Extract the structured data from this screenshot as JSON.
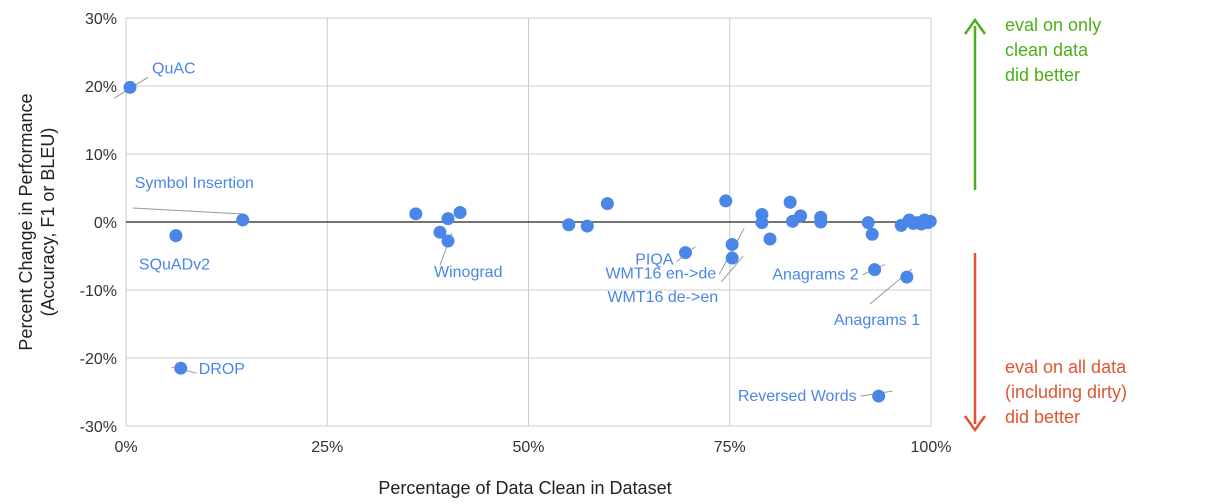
{
  "chart_data": {
    "type": "scatter",
    "title": "",
    "xlabel": "Percentage of Data Clean in Dataset",
    "ylabel": [
      "Percent Change in Performance",
      "(Accuracy,  F1 or BLEU)"
    ],
    "xlim": [
      0,
      100
    ],
    "ylim": [
      -30,
      30
    ],
    "xticks": [
      0,
      25,
      50,
      75,
      100
    ],
    "xtick_labels": [
      "0%",
      "25%",
      "50%",
      "75%",
      "100%"
    ],
    "yticks": [
      30,
      20,
      10,
      0,
      -10,
      -20,
      -30
    ],
    "ytick_labels": [
      "30%",
      "20%",
      "10%",
      "0%",
      "-10%",
      "-20%",
      "-30%"
    ],
    "grid": true,
    "point_color": "#4a86e8",
    "points": [
      {
        "x": 0.5,
        "y": 19.8,
        "label": "QuAC"
      },
      {
        "x": 14.5,
        "y": 0.3,
        "label": "Symbol Insertion"
      },
      {
        "x": 6.2,
        "y": -2.0,
        "label": "SQuADv2"
      },
      {
        "x": 6.8,
        "y": -21.5,
        "label": "DROP"
      },
      {
        "x": 36.0,
        "y": 1.2
      },
      {
        "x": 39.0,
        "y": -1.5
      },
      {
        "x": 40.0,
        "y": 0.5
      },
      {
        "x": 40.0,
        "y": -2.8,
        "label": "Winograd"
      },
      {
        "x": 41.5,
        "y": 1.4
      },
      {
        "x": 55.0,
        "y": -0.4
      },
      {
        "x": 57.3,
        "y": -0.6
      },
      {
        "x": 59.8,
        "y": 2.7
      },
      {
        "x": 69.5,
        "y": -4.5,
        "label": "PIQA"
      },
      {
        "x": 74.5,
        "y": 3.1
      },
      {
        "x": 75.3,
        "y": -3.3,
        "label": "WMT16 en->de"
      },
      {
        "x": 75.3,
        "y": -5.3,
        "label": "WMT16 de->en"
      },
      {
        "x": 79.0,
        "y": 1.1
      },
      {
        "x": 79.0,
        "y": -0.1
      },
      {
        "x": 80.0,
        "y": -2.5
      },
      {
        "x": 82.5,
        "y": 2.9
      },
      {
        "x": 82.8,
        "y": 0.1
      },
      {
        "x": 83.8,
        "y": 0.9
      },
      {
        "x": 86.3,
        "y": 0.7
      },
      {
        "x": 86.3,
        "y": 0.0
      },
      {
        "x": 92.2,
        "y": -0.1
      },
      {
        "x": 92.7,
        "y": -1.8
      },
      {
        "x": 93.0,
        "y": -7.0,
        "label": "Anagrams 2"
      },
      {
        "x": 93.5,
        "y": -25.6,
        "label": "Reversed Words"
      },
      {
        "x": 96.3,
        "y": -0.5
      },
      {
        "x": 97.0,
        "y": -8.1,
        "label": "Anagrams 1"
      },
      {
        "x": 97.3,
        "y": 0.3
      },
      {
        "x": 97.8,
        "y": -0.2
      },
      {
        "x": 98.3,
        "y": -0.1
      },
      {
        "x": 98.8,
        "y": -0.3
      },
      {
        "x": 99.2,
        "y": 0.3
      },
      {
        "x": 99.6,
        "y": -0.1
      },
      {
        "x": 99.9,
        "y": 0.1
      }
    ],
    "annotations": {
      "top": {
        "lines": [
          "eval on only",
          "clean data",
          "did better"
        ],
        "color": "#4caf1a"
      },
      "bottom": {
        "lines": [
          "eval on all data",
          "(including dirty)",
          "did better"
        ],
        "color": "#e0552f"
      }
    }
  }
}
